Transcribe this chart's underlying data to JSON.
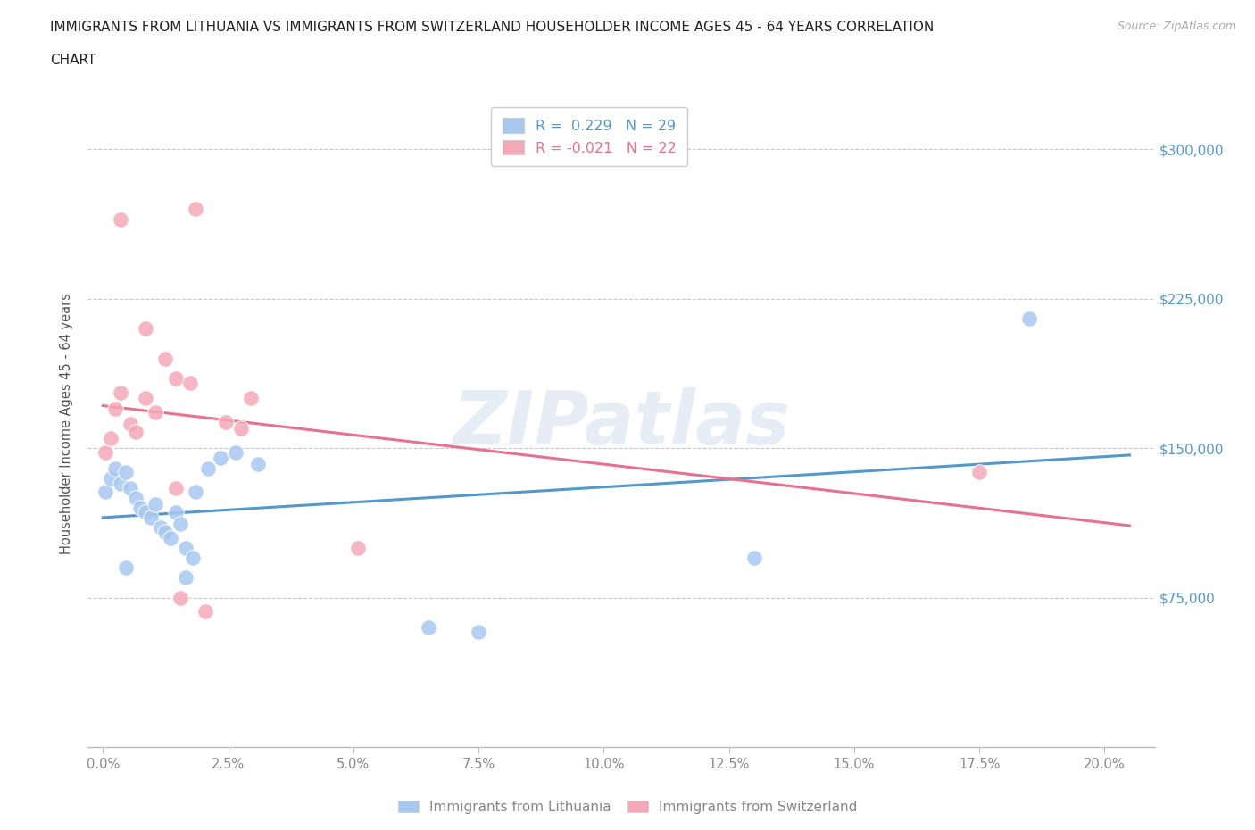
{
  "title_line1": "IMMIGRANTS FROM LITHUANIA VS IMMIGRANTS FROM SWITZERLAND HOUSEHOLDER INCOME AGES 45 - 64 YEARS CORRELATION",
  "title_line2": "CHART",
  "source_text": "Source: ZipAtlas.com",
  "ylabel": "Householder Income Ages 45 - 64 years",
  "xlim": [
    -0.3,
    21.0
  ],
  "ylim": [
    0,
    325000
  ],
  "xlabel_vals": [
    0.0,
    2.5,
    5.0,
    7.5,
    10.0,
    12.5,
    15.0,
    17.5,
    20.0
  ],
  "xlabel_labels": [
    "0.0%",
    "2.5%",
    "5.0%",
    "7.5%",
    "10.0%",
    "12.5%",
    "15.0%",
    "17.5%",
    "20.0%"
  ],
  "ytick_vals": [
    0,
    75000,
    150000,
    225000,
    300000
  ],
  "ytick_labels": [
    "",
    "$75,000",
    "$150,000",
    "$225,000",
    "$300,000"
  ],
  "hgrid_vals": [
    75000,
    150000,
    225000,
    300000
  ],
  "lithuania_color": "#a8c8f0",
  "switzerland_color": "#f4a8b8",
  "lithuania_line_color": "#5599cc",
  "switzerland_line_color": "#e87090",
  "R_lit": 0.229,
  "N_lit": 29,
  "R_swi": -0.021,
  "N_swi": 22,
  "watermark": "ZIPatlas",
  "background_color": "#ffffff",
  "grid_color": "#c8c8c8",
  "title_color": "#222222",
  "right_axis_color": "#5599cc",
  "bottom_legend_color": "#888888",
  "lit_pts_x": [
    0.05,
    0.15,
    0.25,
    0.35,
    0.45,
    0.55,
    0.65,
    0.75,
    0.85,
    0.95,
    1.05,
    1.15,
    1.25,
    1.35,
    1.45,
    1.55,
    1.65,
    1.85,
    2.1,
    2.35,
    2.65,
    3.1,
    0.45,
    1.65,
    1.8,
    7.5,
    13.0,
    18.5,
    6.5
  ],
  "lit_pts_y": [
    128000,
    135000,
    140000,
    132000,
    138000,
    130000,
    125000,
    120000,
    118000,
    115000,
    122000,
    110000,
    108000,
    105000,
    118000,
    112000,
    100000,
    128000,
    140000,
    145000,
    148000,
    142000,
    90000,
    85000,
    95000,
    58000,
    95000,
    215000,
    60000
  ],
  "swi_pts_x": [
    0.05,
    0.15,
    0.25,
    0.35,
    0.55,
    0.65,
    0.85,
    1.05,
    1.25,
    1.45,
    1.75,
    0.35,
    1.85,
    0.85,
    2.45,
    2.75,
    2.95,
    1.55,
    2.05,
    5.1,
    17.5,
    1.45
  ],
  "swi_pts_y": [
    148000,
    155000,
    170000,
    178000,
    162000,
    158000,
    175000,
    168000,
    195000,
    185000,
    183000,
    265000,
    270000,
    210000,
    163000,
    160000,
    175000,
    75000,
    68000,
    100000,
    138000,
    130000
  ]
}
